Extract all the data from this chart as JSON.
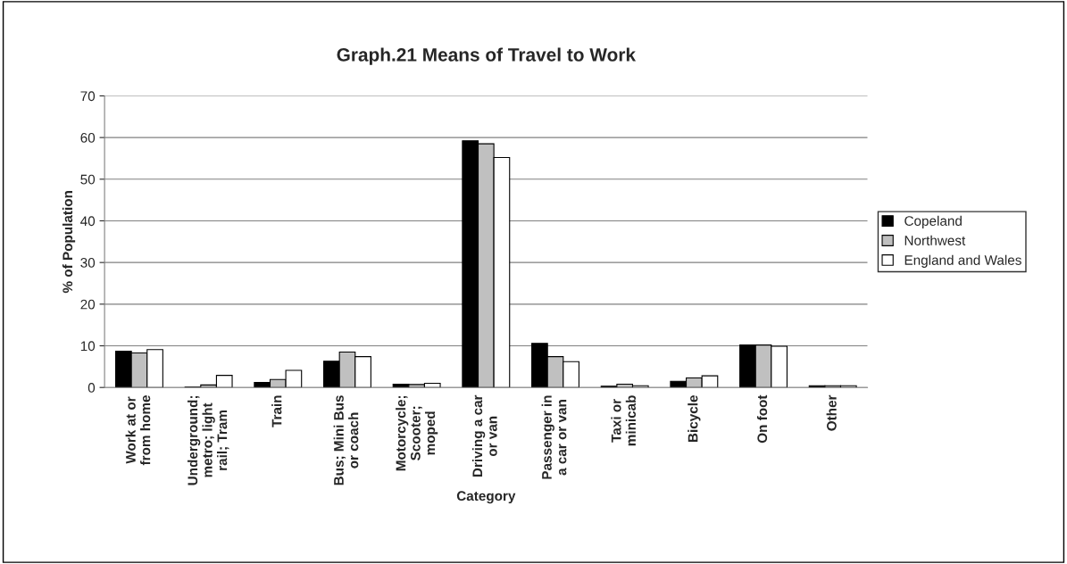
{
  "chart_data": {
    "type": "bar",
    "title": "Graph.21 Means of Travel to Work",
    "xlabel": "Category",
    "ylabel": "% of Population",
    "categories": [
      "Work at or\nfrom home",
      "Underground;\nmetro; light\nrail; Tram",
      "Train",
      "Bus; Mini Bus\nor coach",
      "Motorcycle;\nScooter;\nmoped",
      "Driving a car\nor van",
      "Passenger in\na car or van",
      "Taxi or\nminicab",
      "Bicycle",
      "On foot",
      "Other"
    ],
    "series": [
      {
        "name": "Copeland",
        "color": "#000000",
        "values": [
          8.7,
          0.1,
          1.2,
          6.3,
          0.8,
          59.2,
          10.6,
          0.3,
          1.5,
          10.2,
          0.4
        ]
      },
      {
        "name": "Northwest",
        "color": "#c0c0c0",
        "values": [
          8.3,
          0.6,
          1.9,
          8.5,
          0.7,
          58.5,
          7.4,
          0.8,
          2.3,
          10.2,
          0.4
        ]
      },
      {
        "name": "England and Wales",
        "color": "#ffffff",
        "values": [
          9.1,
          2.9,
          4.1,
          7.4,
          1.0,
          55.2,
          6.2,
          0.4,
          2.8,
          9.9,
          0.4
        ]
      }
    ],
    "ylim": [
      0,
      70
    ],
    "yticks": [
      0,
      10,
      20,
      30,
      40,
      50,
      60,
      70
    ],
    "grid": "y",
    "legend": "right"
  }
}
